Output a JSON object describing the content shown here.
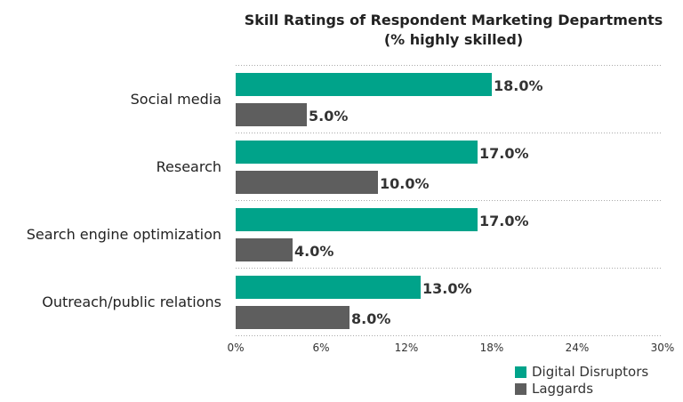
{
  "chart_data": {
    "type": "bar",
    "orientation": "horizontal",
    "title": "Skill Ratings of Respondent Marketing Departments",
    "subtitle": "(% highly skilled)",
    "categories": [
      "Social media",
      "Research",
      "Search engine optimization",
      "Outreach/public relations"
    ],
    "series": [
      {
        "name": "Digital Disruptors",
        "color": "#00a38a",
        "values": [
          18.0,
          17.0,
          17.0,
          13.0
        ]
      },
      {
        "name": "Laggards",
        "color": "#5e5e5e",
        "values": [
          5.0,
          10.0,
          4.0,
          8.0
        ]
      }
    ],
    "xlim": [
      0,
      30
    ],
    "xticks": [
      "0%",
      "6%",
      "12%",
      "18%",
      "24%",
      "30%"
    ],
    "grid": "dotted horizontal separators",
    "legend": "bottom-right"
  }
}
